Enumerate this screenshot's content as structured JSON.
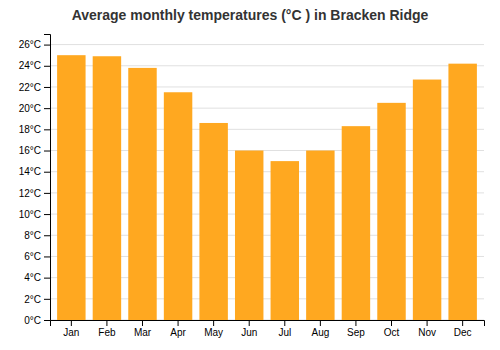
{
  "chart_data": {
    "type": "bar",
    "title": "Average monthly temperatures (°C ) in Bracken Ridge",
    "categories": [
      "Jan",
      "Feb",
      "Mar",
      "Apr",
      "May",
      "Jun",
      "Jul",
      "Aug",
      "Sep",
      "Oct",
      "Nov",
      "Dec"
    ],
    "values": [
      25.0,
      24.9,
      23.8,
      21.5,
      18.6,
      16.0,
      15.0,
      16.0,
      18.3,
      20.5,
      22.7,
      24.2
    ],
    "color": "#FFA820",
    "ylim": [
      0,
      27
    ],
    "yticks": [
      {
        "value": 0,
        "label": "0°C"
      },
      {
        "value": 2,
        "label": "2°C"
      },
      {
        "value": 4,
        "label": "4°C"
      },
      {
        "value": 6,
        "label": "6°C"
      },
      {
        "value": 8,
        "label": "8°C"
      },
      {
        "value": 10,
        "label": "10°C"
      },
      {
        "value": 12,
        "label": "12°C"
      },
      {
        "value": 14,
        "label": "14°C"
      },
      {
        "value": 16,
        "label": "16°C"
      },
      {
        "value": 18,
        "label": "18°C"
      },
      {
        "value": 20,
        "label": "20°C"
      },
      {
        "value": 22,
        "label": "22°C"
      },
      {
        "value": 24,
        "label": "24°C"
      },
      {
        "value": 26,
        "label": "26°C"
      }
    ],
    "grid": true
  }
}
